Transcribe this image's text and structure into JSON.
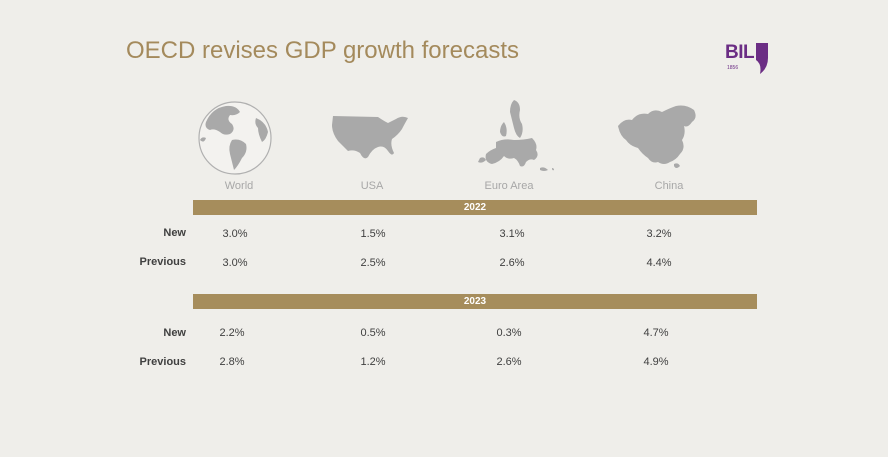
{
  "title": "OECD revises GDP growth forecasts",
  "logo": {
    "text": "BIL",
    "year": "1856",
    "color": "#6b2d84"
  },
  "regions": [
    {
      "name": "World",
      "icon": "globe-icon"
    },
    {
      "name": "USA",
      "icon": "usa-map-icon"
    },
    {
      "name": "Euro Area",
      "icon": "europe-map-icon"
    },
    {
      "name": "China",
      "icon": "china-map-icon"
    }
  ],
  "sections": [
    {
      "year": "2022",
      "rows": [
        {
          "label": "New",
          "values": [
            "3.0%",
            "1.5%",
            "3.1%",
            "3.2%"
          ]
        },
        {
          "label": "Previous",
          "values": [
            "3.0%",
            "2.5%",
            "2.6%",
            "4.4%"
          ]
        }
      ]
    },
    {
      "year": "2023",
      "rows": [
        {
          "label": "New",
          "values": [
            "2.2%",
            "0.5%",
            "0.3%",
            "4.7%"
          ]
        },
        {
          "label": "Previous",
          "values": [
            "2.8%",
            "1.2%",
            "2.6%",
            "4.9%"
          ]
        }
      ]
    }
  ],
  "colors": {
    "accent": "#a68d5c",
    "title": "#a48a5c",
    "map": "#a9a9a9"
  }
}
